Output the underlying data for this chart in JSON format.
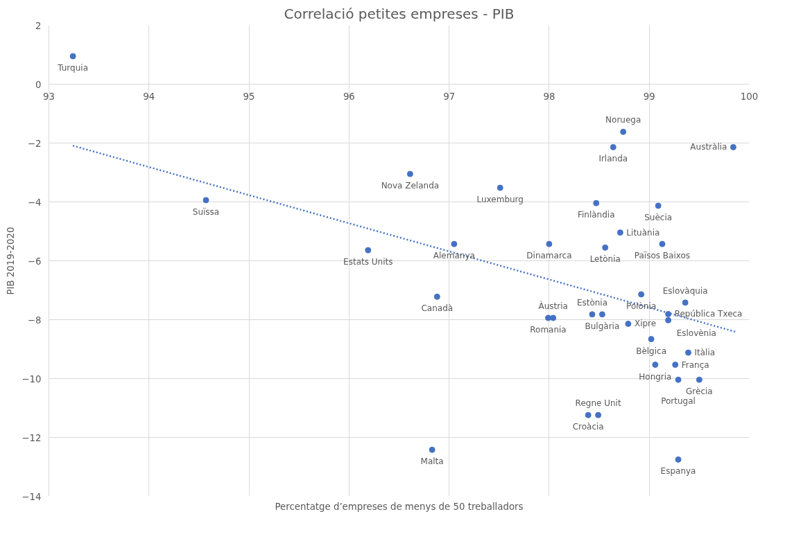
{
  "chart_data": {
    "type": "scatter",
    "title": "Correlació petites empreses - PIB",
    "xlabel": "Percentatge d’empreses de menys de 50 treballadors",
    "ylabel": "PIB 2019-2020",
    "xlim": [
      93,
      100
    ],
    "xticks": [
      93,
      94,
      95,
      96,
      97,
      98,
      99,
      100
    ],
    "ylim": [
      -14,
      2
    ],
    "yticks": [
      -14,
      -12,
      -10,
      -8,
      -6,
      -4,
      -2,
      0,
      2
    ],
    "grid": true,
    "marker": "circle",
    "series": [
      {
        "color": "#4472c4",
        "x": [
          93.24,
          94.57,
          96.61,
          97.51,
          96.19,
          97.05,
          96.88,
          96.83,
          98.0,
          97.99,
          98.04,
          98.74,
          98.64,
          99.84,
          98.47,
          99.09,
          98.71,
          98.56,
          99.13,
          99.36,
          98.53,
          98.43,
          98.92,
          99.19,
          98.79,
          99.02,
          99.19,
          99.39,
          99.26,
          99.06,
          99.5,
          99.29,
          98.39,
          98.49,
          99.29
        ],
        "values": [
          0.95,
          -3.94,
          -3.05,
          -3.52,
          -5.64,
          -5.43,
          -7.22,
          -12.42,
          -5.43,
          -7.94,
          -7.94,
          -1.62,
          -2.14,
          -2.14,
          -4.04,
          -4.13,
          -5.04,
          -5.55,
          -5.43,
          -7.42,
          -7.82,
          -7.82,
          -7.14,
          -7.81,
          -8.14,
          -8.66,
          -8.02,
          -9.12,
          -9.53,
          -9.53,
          -10.04,
          -10.04,
          -11.24,
          -11.24,
          -12.75
        ],
        "value_labels": [
          "Turquia",
          "Suïssa",
          "Nova Zelanda",
          "Luxemburg",
          "Estats Units",
          "Alemanya",
          "Canadà",
          "Malta",
          "Dinamarca",
          "Romania",
          "Àustria",
          "Noruega",
          "Irlanda",
          "Austràlia",
          "Finlàndia",
          "Suècia",
          "Lituània",
          "Letònia",
          "Països Baixos",
          "Eslovàquia",
          "Bulgària",
          "Estònia",
          "Polònia",
          "República Txeca",
          "Xipre",
          "Bèlgica",
          "Eslovènia",
          "Itàlia",
          "França",
          "Hongria",
          "Grècia",
          "Portugal",
          "Croàcia",
          "Regne Unit",
          "Espanya"
        ]
      },
      {
        "type": "line",
        "color": "#4472c4",
        "line_style": "dotted",
        "marker": "none",
        "x": [
          93.24,
          99.86
        ],
        "values": [
          -2.09,
          -8.41
        ]
      }
    ]
  }
}
